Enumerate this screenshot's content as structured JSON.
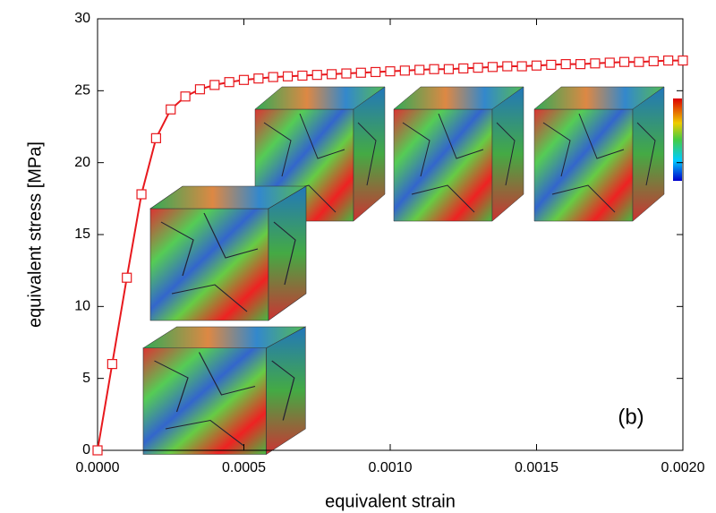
{
  "chart_data": {
    "type": "line",
    "x_label": "equivalent strain",
    "y_label": "equivalent stress [MPa]",
    "annotation": "(b)",
    "x": [
      0,
      5e-05,
      0.0001,
      0.00015,
      0.0002,
      0.00025,
      0.0003,
      0.00035,
      0.0004,
      0.00045,
      0.0005,
      0.00055,
      0.0006,
      0.00065,
      0.0007,
      0.00075,
      0.0008,
      0.00085,
      0.0009,
      0.00095,
      0.001,
      0.00105,
      0.0011,
      0.00115,
      0.0012,
      0.00125,
      0.0013,
      0.00135,
      0.0014,
      0.00145,
      0.0015,
      0.00155,
      0.0016,
      0.00165,
      0.0017,
      0.00175,
      0.0018,
      0.00185,
      0.0019,
      0.00195,
      0.002
    ],
    "values": [
      0,
      6,
      12,
      17.8,
      21.7,
      23.7,
      24.6,
      25.1,
      25.4,
      25.6,
      25.75,
      25.85,
      25.95,
      26.0,
      26.05,
      26.1,
      26.15,
      26.2,
      26.25,
      26.3,
      26.35,
      26.4,
      26.45,
      26.5,
      26.5,
      26.55,
      26.6,
      26.65,
      26.7,
      26.7,
      26.75,
      26.8,
      26.85,
      26.85,
      26.9,
      26.95,
      27.0,
      27.0,
      27.05,
      27.1,
      27.1
    ],
    "color": "#e8191e",
    "xlim": [
      0,
      0.002
    ],
    "xticks": [
      {
        "value": 0,
        "label": "0.0000"
      },
      {
        "value": 0.0005,
        "label": "0.0005"
      },
      {
        "value": 0.001,
        "label": "0.0010"
      },
      {
        "value": 0.0015,
        "label": "0.0015"
      },
      {
        "value": 0.002,
        "label": "0.0020"
      }
    ],
    "ylim": [
      0,
      30
    ],
    "yticks": [
      0,
      5,
      10,
      15,
      20,
      25,
      30
    ]
  }
}
